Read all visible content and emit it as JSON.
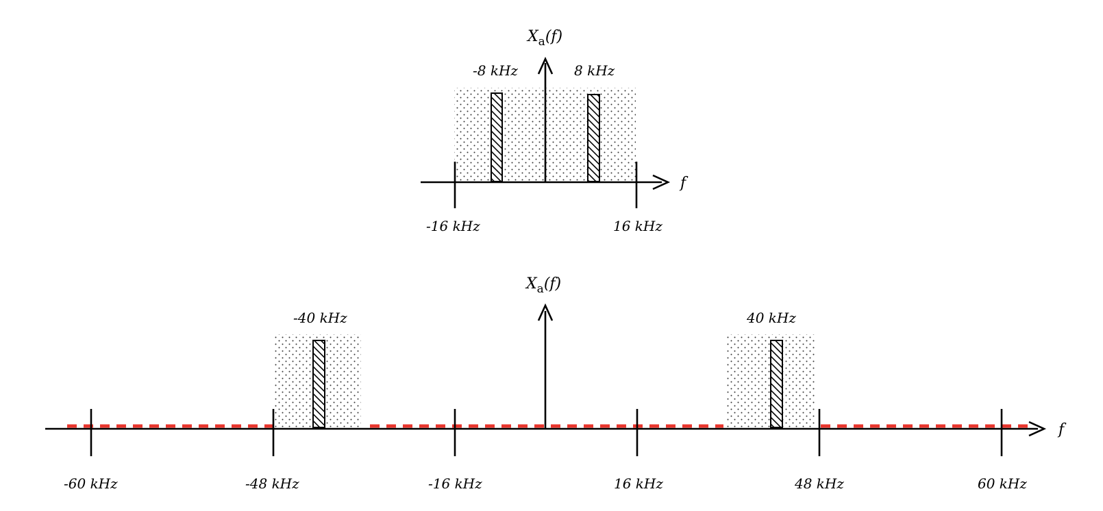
{
  "top_plot": {
    "y_label_main": "X",
    "y_label_sub": "a",
    "y_label_arg": "(f)",
    "x_label": "f",
    "ticks": [
      {
        "value": -16,
        "label": "-16 kHz"
      },
      {
        "value": 16,
        "label": "16 kHz"
      }
    ],
    "bands": [
      {
        "from": -16,
        "to": 16
      }
    ],
    "tones": [
      {
        "value": -8,
        "label": "-8 kHz"
      },
      {
        "value": 8,
        "label": "8 kHz"
      }
    ]
  },
  "bottom_plot": {
    "y_label_main": "X",
    "y_label_sub": "a",
    "y_label_arg": "(f)",
    "x_label": "f",
    "ticks": [
      {
        "value": -60,
        "label": "-60 kHz"
      },
      {
        "value": -48,
        "label": "-48 kHz"
      },
      {
        "value": -16,
        "label": "-16 kHz"
      },
      {
        "value": 16,
        "label": "16 kHz"
      },
      {
        "value": 48,
        "label": "48 kHz"
      },
      {
        "value": 60,
        "label": "60 kHz"
      }
    ],
    "bands": [
      {
        "from": -48,
        "to": -32
      },
      {
        "from": 32,
        "to": 48
      }
    ],
    "tones": [
      {
        "value": -40,
        "label": "-40 kHz"
      },
      {
        "value": 40,
        "label": "40 kHz"
      }
    ],
    "dashed_segments": [
      {
        "from": -64,
        "to": -48
      },
      {
        "from": -31,
        "to": 31
      },
      {
        "from": 48,
        "to": 64
      }
    ]
  },
  "colors": {
    "axis": "#000000",
    "dashed_line": "#e8362e"
  }
}
